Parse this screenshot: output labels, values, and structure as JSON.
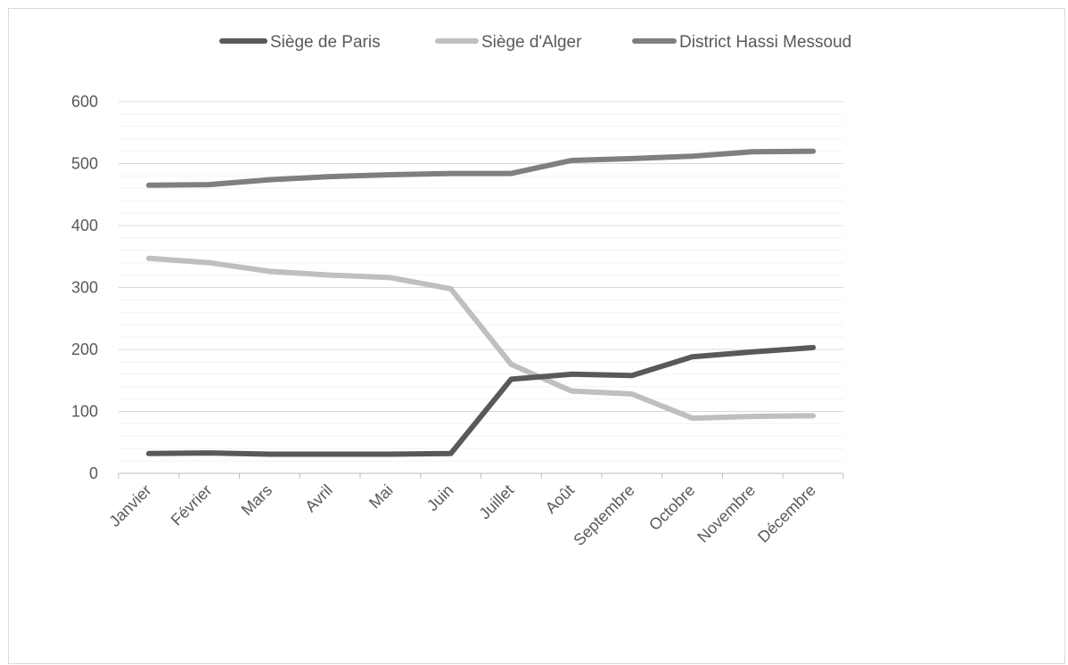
{
  "chart_data": {
    "type": "line",
    "title": "",
    "xlabel": "",
    "ylabel": "",
    "categories": [
      "Janvier",
      "Février",
      "Mars",
      "Avril",
      "Mai",
      "Juin",
      "Juillet",
      "Août",
      "Septembre",
      "Octobre",
      "Novembre",
      "Décembre"
    ],
    "ylim": [
      0,
      600
    ],
    "yticks": [
      "0",
      "100",
      "200",
      "300",
      "400",
      "500",
      "600"
    ],
    "grid": true,
    "legend_position": "top",
    "series": [
      {
        "name": "Siège de Paris",
        "color": "#595959",
        "values": [
          32,
          33,
          31,
          31,
          31,
          32,
          152,
          160,
          158,
          188,
          196,
          203
        ]
      },
      {
        "name": "Siège d'Alger",
        "color": "#bfbfbf",
        "values": [
          347,
          340,
          326,
          320,
          316,
          298,
          176,
          133,
          128,
          89,
          92,
          93
        ]
      },
      {
        "name": "District Hassi Messoud",
        "color": "#7f7f7f",
        "values": [
          465,
          466,
          474,
          479,
          482,
          484,
          484,
          505,
          508,
          512,
          519,
          520
        ]
      }
    ]
  }
}
